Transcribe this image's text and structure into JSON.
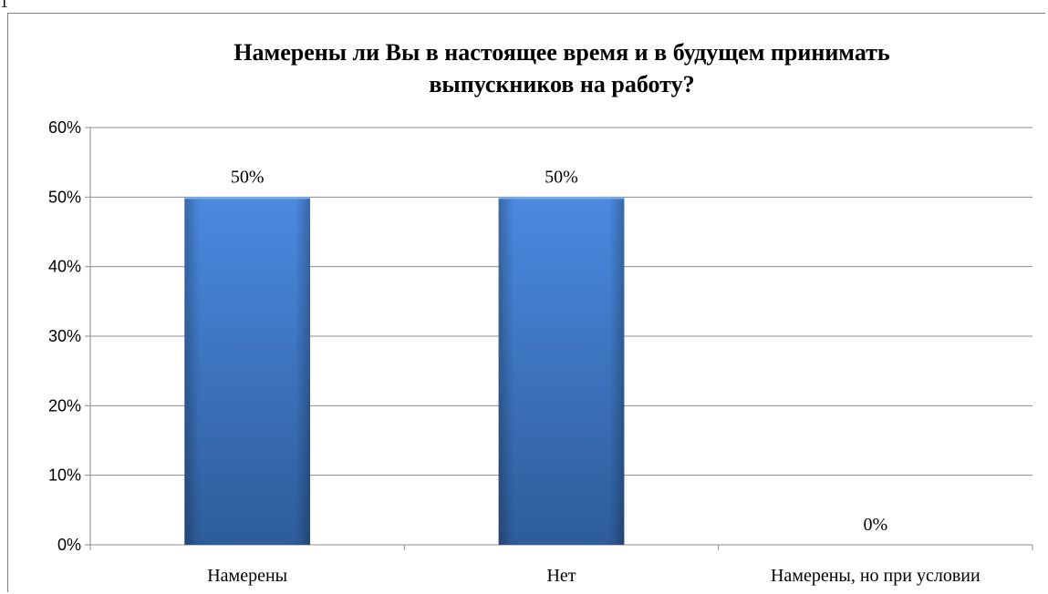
{
  "chart_data": {
    "type": "bar",
    "title": "Намерены ли Вы в настоящее время и в будущем принимать выпускников на работу?",
    "title_lines": [
      "Намерены ли Вы в настоящее время и в будущем принимать",
      "выпускников на работу?"
    ],
    "categories": [
      "Намерены",
      "Нет",
      "Намерены, но при условии"
    ],
    "values": [
      50,
      50,
      0
    ],
    "value_labels": [
      "50%",
      "50%",
      "0%"
    ],
    "y_ticks": [
      0,
      10,
      20,
      30,
      40,
      50,
      60
    ],
    "y_tick_labels": [
      "0%",
      "10%",
      "20%",
      "30%",
      "40%",
      "50%",
      "60%"
    ],
    "ylim": [
      0,
      60
    ],
    "grid": true,
    "legend": "none",
    "bar_color": "#3f78c4",
    "bar_color_light": "#4a8ae0",
    "bar_color_dark": "#2e5c9a",
    "xlabel": "",
    "ylabel": ""
  },
  "stray_text": "1"
}
